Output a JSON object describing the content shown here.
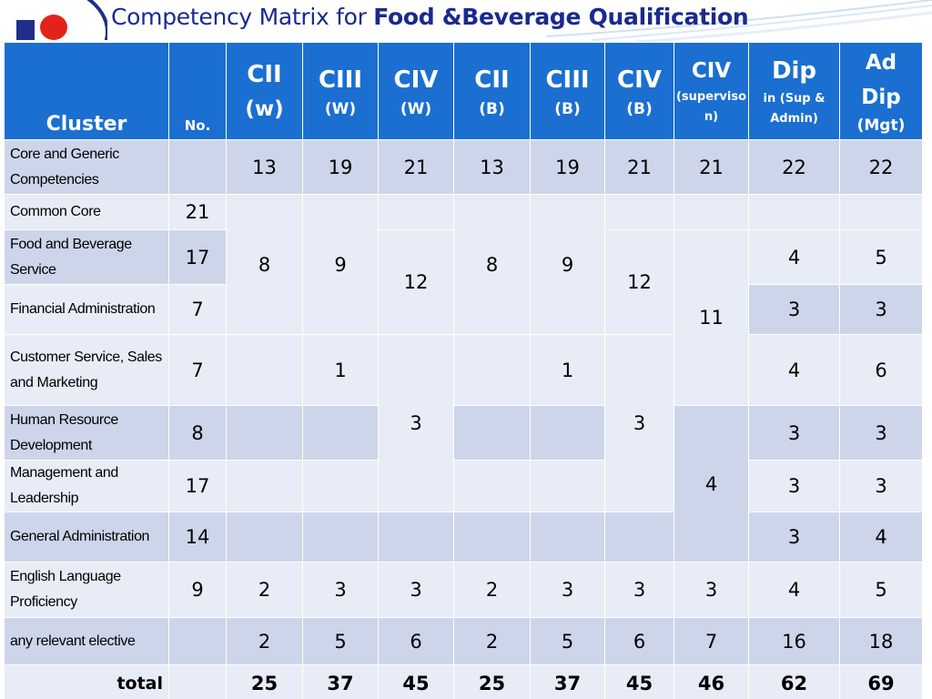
{
  "slide": {
    "title_prefix": "Competency Matrix for ",
    "title_bold": "Food &Beverage Qualification"
  },
  "colors": {
    "header": "#1b6fd1",
    "row_dark": "#cdd5ea",
    "row_light": "#e8ecf6",
    "title": "#1a2a8c"
  },
  "header": {
    "cluster": "Cluster",
    "no": "No.",
    "cols": [
      {
        "top": "CII",
        "bottom": "(w)"
      },
      {
        "top": "CIII",
        "bottom": "(W)"
      },
      {
        "top": "CIV",
        "bottom": "(W)"
      },
      {
        "top": "CII",
        "bottom": "(B)"
      },
      {
        "top": "CIII",
        "bottom": "(B)"
      },
      {
        "top": "CIV",
        "bottom": "(B)"
      },
      {
        "top": "CIV",
        "bottom": "(superviso\nn)"
      },
      {
        "top": "Dip",
        "bottom": "in (Sup &\nAdmin)"
      },
      {
        "top": "Ad\nDip",
        "bottom": "(Mgt)"
      }
    ]
  },
  "rows": {
    "core": {
      "label": "Core and Generic Competencies",
      "no": "",
      "v": [
        "13",
        "19",
        "21",
        "13",
        "19",
        "21",
        "21",
        "22",
        "22"
      ]
    },
    "common": {
      "label": "Common Core",
      "no": "21"
    },
    "fbs": {
      "label": "Food and Beverage Service",
      "no": "17",
      "dip": "4",
      "ad": "5"
    },
    "fin": {
      "label": "Financial Administration",
      "no": "7",
      "dip": "3",
      "ad": "3"
    },
    "cust": {
      "label": "Customer Service, Sales and Marketing",
      "no": "7",
      "c3w": "1",
      "c3b": "1",
      "dip": "4",
      "ad": "6"
    },
    "hr": {
      "label": "Human Resource Development",
      "no": "8",
      "dip": "3",
      "ad": "3"
    },
    "mgmt": {
      "label": "Management and Leadership",
      "no": "17",
      "dip": "3",
      "ad": "3"
    },
    "gen": {
      "label": "General Administration",
      "no": "14",
      "dip": "3",
      "ad": "4"
    },
    "eng": {
      "label": "English Language Proficiency",
      "no": "9",
      "v": [
        "2",
        "3",
        "3",
        "2",
        "3",
        "3",
        "3",
        "4",
        "5"
      ]
    },
    "elective": {
      "label": "any relevant elective",
      "no": "",
      "v": [
        "2",
        "5",
        "6",
        "2",
        "5",
        "6",
        "7",
        "16",
        "18"
      ]
    },
    "total": {
      "label": "total",
      "no": "",
      "v": [
        "25",
        "37",
        "45",
        "25",
        "37",
        "45",
        "46",
        "62",
        "69"
      ]
    }
  },
  "merged": {
    "c2w": "8",
    "c3w": "9",
    "c4w_a": "12",
    "c4w_b": "3",
    "c2b": "8",
    "c3b": "9",
    "c4b_a": "12",
    "c4b_b": "3",
    "civs_a": "11",
    "civs_b": "4"
  }
}
